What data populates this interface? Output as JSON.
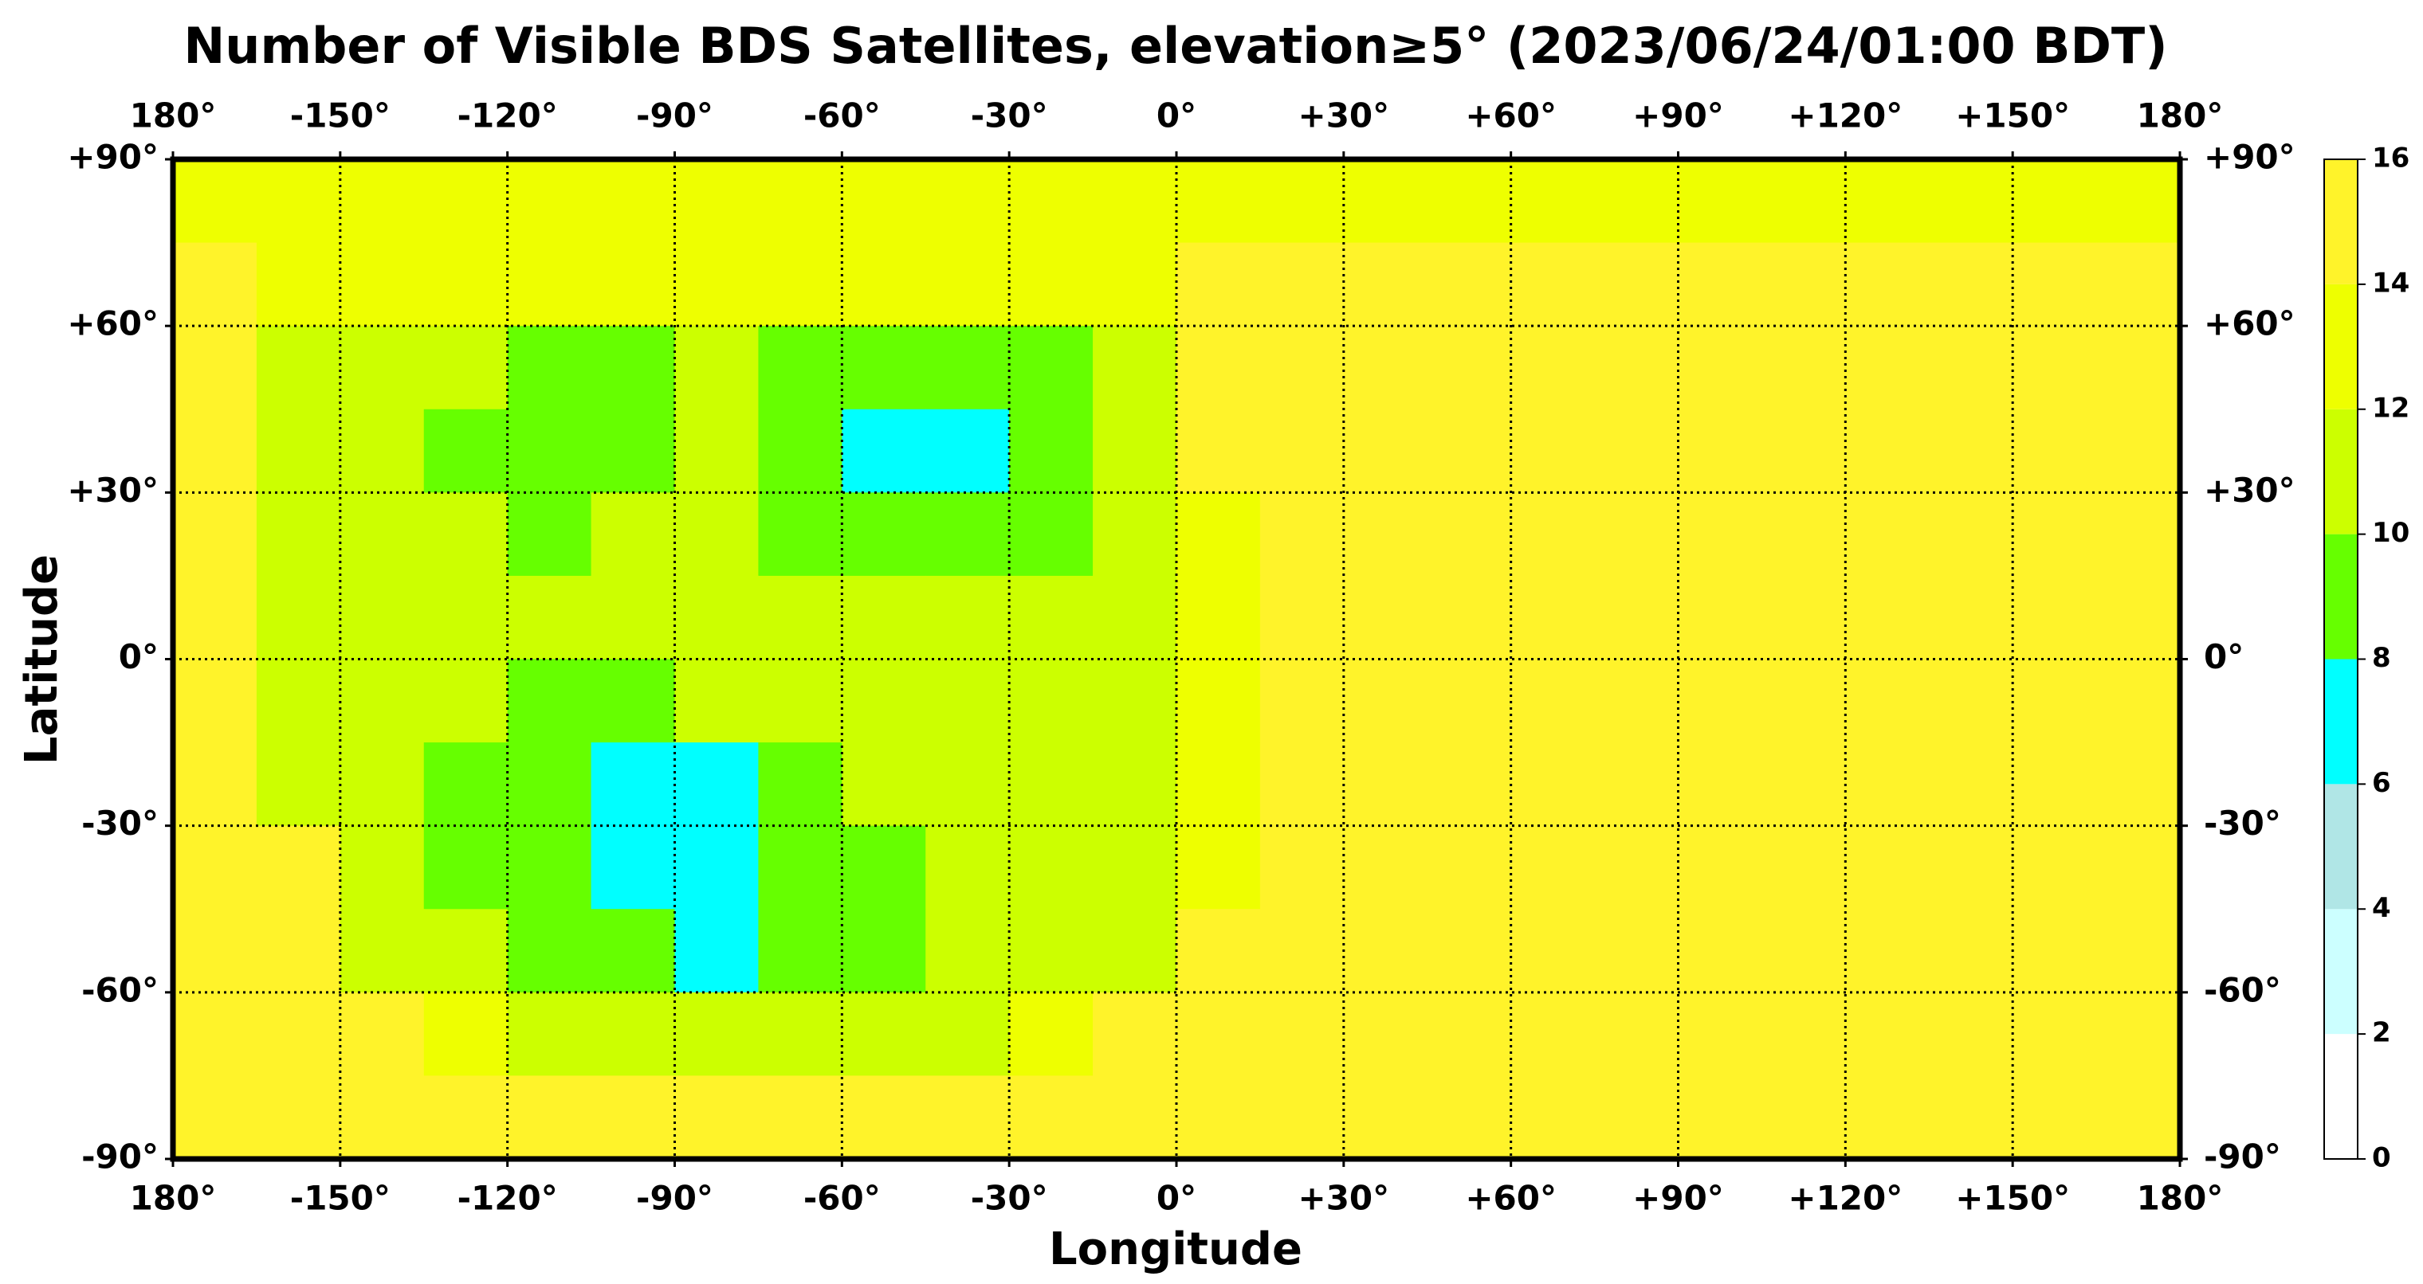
{
  "chart_data": {
    "type": "heatmap",
    "title": "Number of Visible BDS Satellites, elevation≥5° (2023/06/24/01:00 BDT)",
    "xlabel": "Longitude",
    "ylabel": "Latitude",
    "xlim": [
      -180,
      180
    ],
    "ylim": [
      -90,
      90
    ],
    "xticks": [
      {
        "value": -180,
        "label": "180°"
      },
      {
        "value": -150,
        "label": "-150°"
      },
      {
        "value": -120,
        "label": "-120°"
      },
      {
        "value": -90,
        "label": "-90°"
      },
      {
        "value": -60,
        "label": "-60°"
      },
      {
        "value": -30,
        "label": "-30°"
      },
      {
        "value": 0,
        "label": "0°"
      },
      {
        "value": 30,
        "label": "+30°"
      },
      {
        "value": 60,
        "label": "+60°"
      },
      {
        "value": 90,
        "label": "+90°"
      },
      {
        "value": 120,
        "label": "+120°"
      },
      {
        "value": 150,
        "label": "+150°"
      },
      {
        "value": 180,
        "label": "180°"
      }
    ],
    "yticks": [
      {
        "value": 90,
        "label": "+90°"
      },
      {
        "value": 60,
        "label": "+60°"
      },
      {
        "value": 30,
        "label": "+30°"
      },
      {
        "value": 0,
        "label": "0°"
      },
      {
        "value": -30,
        "label": "-30°"
      },
      {
        "value": -60,
        "label": "-60°"
      },
      {
        "value": -90,
        "label": "-90°"
      }
    ],
    "grid": true,
    "x": [
      -172.5,
      -157.5,
      -142.5,
      -127.5,
      -112.5,
      -97.5,
      -82.5,
      -67.5,
      -52.5,
      -37.5,
      -22.5,
      -7.5,
      7.5,
      22.5,
      37.5,
      52.5,
      67.5,
      82.5,
      97.5,
      112.5,
      127.5,
      142.5,
      157.5,
      172.5
    ],
    "y": [
      82.5,
      67.5,
      52.5,
      37.5,
      22.5,
      7.5,
      -7.5,
      -22.5,
      -37.5,
      -52.5,
      -67.5,
      -82.5
    ],
    "z": [
      [
        13,
        13,
        13,
        13,
        13,
        13,
        13,
        13,
        13,
        13,
        13,
        13,
        13,
        13,
        13,
        13,
        13,
        13,
        13,
        13,
        13,
        13,
        13,
        13
      ],
      [
        15,
        13,
        13,
        13,
        13,
        13,
        13,
        13,
        13,
        13,
        13,
        13,
        15,
        15,
        15,
        15,
        15,
        15,
        15,
        15,
        15,
        15,
        15,
        15
      ],
      [
        15,
        11,
        11,
        11,
        9,
        9,
        11,
        9,
        9,
        9,
        9,
        11,
        15,
        15,
        15,
        15,
        15,
        15,
        15,
        15,
        15,
        15,
        15,
        15
      ],
      [
        15,
        11,
        11,
        9,
        9,
        9,
        11,
        9,
        7,
        7,
        9,
        11,
        15,
        15,
        15,
        15,
        15,
        15,
        15,
        15,
        15,
        15,
        15,
        15
      ],
      [
        15,
        11,
        11,
        11,
        9,
        11,
        11,
        9,
        9,
        9,
        9,
        11,
        13,
        15,
        15,
        15,
        15,
        15,
        15,
        15,
        15,
        15,
        15,
        15
      ],
      [
        15,
        11,
        11,
        11,
        11,
        11,
        11,
        11,
        11,
        11,
        11,
        11,
        13,
        15,
        15,
        15,
        15,
        15,
        15,
        15,
        15,
        15,
        15,
        15
      ],
      [
        15,
        11,
        11,
        11,
        9,
        9,
        11,
        11,
        11,
        11,
        11,
        11,
        13,
        15,
        15,
        15,
        15,
        15,
        15,
        15,
        15,
        15,
        15,
        15
      ],
      [
        15,
        11,
        11,
        9,
        9,
        7,
        7,
        9,
        11,
        11,
        11,
        11,
        13,
        15,
        15,
        15,
        15,
        15,
        15,
        15,
        15,
        15,
        15,
        15
      ],
      [
        15,
        15,
        11,
        9,
        9,
        7,
        7,
        9,
        9,
        11,
        11,
        11,
        13,
        15,
        15,
        15,
        15,
        15,
        15,
        15,
        15,
        15,
        15,
        15
      ],
      [
        15,
        15,
        11,
        11,
        9,
        9,
        7,
        9,
        9,
        11,
        11,
        11,
        15,
        15,
        15,
        15,
        15,
        15,
        15,
        15,
        15,
        15,
        15,
        15
      ],
      [
        15,
        15,
        15,
        13,
        11,
        11,
        11,
        11,
        11,
        11,
        13,
        15,
        15,
        15,
        15,
        15,
        15,
        15,
        15,
        15,
        15,
        15,
        15,
        15
      ],
      [
        15,
        15,
        15,
        15,
        15,
        15,
        15,
        15,
        15,
        15,
        15,
        15,
        15,
        15,
        15,
        15,
        15,
        15,
        15,
        15,
        15,
        15,
        15,
        15
      ]
    ],
    "colorbar": {
      "ticks": [
        0,
        2,
        4,
        6,
        8,
        10,
        12,
        14,
        16
      ],
      "colors": [
        "#ffffff",
        "#ccffff",
        "#b0e6e6",
        "#00ffff",
        "#66ff00",
        "#ccff00",
        "#eeff00",
        "#fff32a"
      ]
    }
  }
}
